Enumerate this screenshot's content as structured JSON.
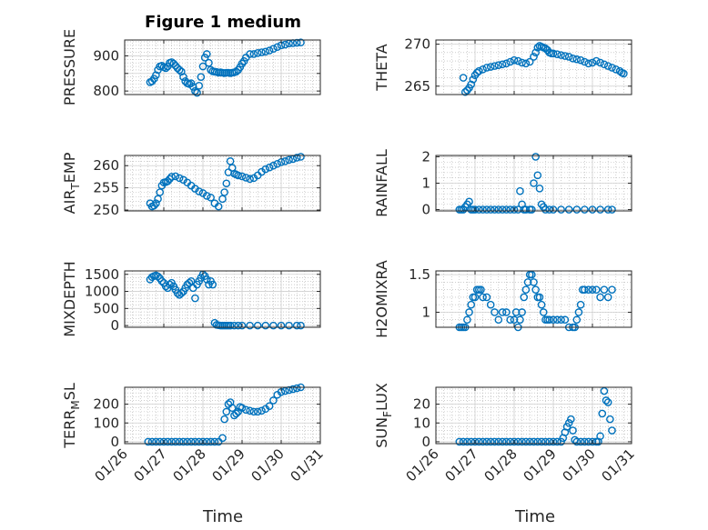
{
  "figure": {
    "title": "Figure 1 medium",
    "xlabel_left": "Time",
    "xlabel_right": "Time",
    "x_tick_labels": [
      "01/26",
      "01/27",
      "01/28",
      "01/29",
      "01/30",
      "01/31"
    ]
  },
  "colors": {
    "marker": "#0072BD",
    "axes": "#262626",
    "grid": "#b0b0b0",
    "background": "#ffffff"
  },
  "chart_data": [
    {
      "type": "scatter",
      "ylabel": "PRESSURE",
      "ylabel_sub": "",
      "ylabel_after": "",
      "xlim": [
        "01/26",
        "01/31"
      ],
      "ylim": [
        790,
        945
      ],
      "yticks": [
        800,
        850,
        900
      ],
      "ytick_labels": [
        "800",
        "",
        "900"
      ],
      "x": [
        0.65,
        0.7,
        0.75,
        0.8,
        0.85,
        0.9,
        0.95,
        1.0,
        1.05,
        1.1,
        1.15,
        1.2,
        1.25,
        1.3,
        1.35,
        1.4,
        1.45,
        1.5,
        1.55,
        1.6,
        1.65,
        1.7,
        1.75,
        1.8,
        1.85,
        1.9,
        1.95,
        2.0,
        2.05,
        2.1,
        2.15,
        2.2,
        2.25,
        2.3,
        2.35,
        2.4,
        2.45,
        2.5,
        2.55,
        2.6,
        2.65,
        2.7,
        2.75,
        2.8,
        2.85,
        2.9,
        2.95,
        3.0,
        3.05,
        3.1,
        3.2,
        3.3,
        3.4,
        3.5,
        3.6,
        3.7,
        3.8,
        3.9,
        4.0,
        4.1,
        4.2,
        4.3,
        4.4,
        4.5
      ],
      "y": [
        825,
        828,
        835,
        845,
        860,
        870,
        872,
        868,
        865,
        870,
        880,
        882,
        878,
        872,
        865,
        860,
        855,
        840,
        828,
        822,
        820,
        822,
        812,
        800,
        795,
        815,
        840,
        870,
        895,
        905,
        880,
        860,
        856,
        855,
        854,
        852,
        853,
        852,
        851,
        852,
        852,
        851,
        852,
        853,
        855,
        860,
        868,
        878,
        885,
        895,
        905,
        905,
        908,
        910,
        912,
        915,
        920,
        925,
        930,
        932,
        935,
        936,
        937,
        938
      ]
    },
    {
      "type": "scatter",
      "ylabel": "THETA",
      "ylabel_sub": "",
      "ylabel_after": "",
      "xlim": [
        "01/26",
        "01/31"
      ],
      "ylim": [
        264,
        270.5
      ],
      "yticks": [
        265,
        270
      ],
      "ytick_labels": [
        "265",
        "270"
      ],
      "x": [
        0.7,
        0.75,
        0.8,
        0.85,
        0.9,
        0.95,
        1.0,
        1.05,
        1.1,
        1.2,
        1.3,
        1.4,
        1.5,
        1.6,
        1.7,
        1.8,
        1.9,
        2.0,
        2.1,
        2.2,
        2.3,
        2.4,
        2.5,
        2.55,
        2.6,
        2.65,
        2.7,
        2.75,
        2.8,
        2.85,
        2.9,
        2.95,
        3.0,
        3.1,
        3.2,
        3.3,
        3.4,
        3.5,
        3.6,
        3.7,
        3.8,
        3.9,
        4.0,
        4.1,
        4.2,
        4.3,
        4.4,
        4.5,
        4.6,
        4.7,
        4.75,
        4.8
      ],
      "y": [
        266,
        264.3,
        264.5,
        264.8,
        265.2,
        265.8,
        266.3,
        266.6,
        266.8,
        267.0,
        267.2,
        267.3,
        267.4,
        267.5,
        267.6,
        267.7,
        267.9,
        268.1,
        268.0,
        267.8,
        267.7,
        267.9,
        268.5,
        269.0,
        269.6,
        269.8,
        269.7,
        269.6,
        269.5,
        269.3,
        269.0,
        268.9,
        268.9,
        268.8,
        268.7,
        268.6,
        268.5,
        268.3,
        268.2,
        268.1,
        267.9,
        267.7,
        267.8,
        268.0,
        267.8,
        267.6,
        267.4,
        267.2,
        267.0,
        266.8,
        266.6,
        266.5
      ]
    },
    {
      "type": "scatter",
      "ylabel": "AIR",
      "ylabel_sub": "T",
      "ylabel_after": "EMP",
      "xlim": [
        "01/26",
        "01/31"
      ],
      "ylim": [
        249.8,
        262.3
      ],
      "yticks": [
        250,
        255,
        260
      ],
      "ytick_labels": [
        "250",
        "255",
        "260"
      ],
      "x": [
        0.65,
        0.7,
        0.75,
        0.8,
        0.85,
        0.9,
        0.95,
        1.0,
        1.05,
        1.1,
        1.15,
        1.2,
        1.3,
        1.4,
        1.5,
        1.6,
        1.7,
        1.8,
        1.9,
        2.0,
        2.1,
        2.2,
        2.3,
        2.4,
        2.5,
        2.55,
        2.6,
        2.65,
        2.7,
        2.75,
        2.8,
        2.85,
        2.9,
        3.0,
        3.1,
        3.2,
        3.3,
        3.4,
        3.5,
        3.6,
        3.7,
        3.8,
        3.9,
        4.0,
        4.1,
        4.2,
        4.3,
        4.4,
        4.5
      ],
      "y": [
        251.5,
        250.8,
        251,
        251.5,
        252.5,
        254,
        255.5,
        256.2,
        256.3,
        256.5,
        257,
        257.5,
        257.6,
        257.2,
        256.8,
        256.2,
        255.5,
        254.8,
        254.2,
        253.8,
        253.2,
        252.8,
        251.5,
        250.8,
        252.5,
        254,
        256,
        258.5,
        261,
        259.5,
        258.2,
        258,
        257.8,
        257.6,
        257.3,
        257.0,
        257.2,
        257.8,
        258.6,
        259.2,
        259.6,
        260.0,
        260.4,
        260.8,
        261.0,
        261.3,
        261.5,
        261.8,
        262.0
      ]
    },
    {
      "type": "scatter",
      "ylabel": "RAINFALL",
      "ylabel_sub": "",
      "ylabel_after": "",
      "xlim": [
        "01/26",
        "01/31"
      ],
      "ylim": [
        -0.05,
        2.05
      ],
      "yticks": [
        0,
        1,
        2
      ],
      "ytick_labels": [
        "0",
        "1",
        "2"
      ],
      "x": [
        0.6,
        0.65,
        0.7,
        0.75,
        0.8,
        0.85,
        0.9,
        0.95,
        1.0,
        1.1,
        1.2,
        1.3,
        1.4,
        1.5,
        1.6,
        1.7,
        1.8,
        1.9,
        2.0,
        2.1,
        2.15,
        2.2,
        2.25,
        2.3,
        2.4,
        2.45,
        2.5,
        2.55,
        2.6,
        2.65,
        2.7,
        2.75,
        2.8,
        2.9,
        3.0,
        3.2,
        3.4,
        3.6,
        3.8,
        4.0,
        4.2,
        4.4,
        4.5
      ],
      "y": [
        0,
        0,
        0,
        0.1,
        0.2,
        0.3,
        0,
        0,
        0,
        0,
        0,
        0,
        0,
        0,
        0,
        0,
        0,
        0,
        0,
        0,
        0.7,
        0.2,
        0,
        0,
        0,
        0,
        1.0,
        2.0,
        1.3,
        0.8,
        0.2,
        0.1,
        0,
        0,
        0,
        0,
        0,
        0,
        0,
        0,
        0,
        0,
        0
      ]
    },
    {
      "type": "scatter",
      "ylabel": "MIXDEPTH",
      "ylabel_sub": "",
      "ylabel_after": "",
      "xlim": [
        "01/26",
        "01/31"
      ],
      "ylim": [
        -50,
        1600
      ],
      "yticks": [
        0,
        500,
        1000,
        1500
      ],
      "ytick_labels": [
        "0",
        "500",
        "1000",
        "1500"
      ],
      "x": [
        0.65,
        0.7,
        0.75,
        0.8,
        0.85,
        0.9,
        0.95,
        1.0,
        1.05,
        1.1,
        1.15,
        1.2,
        1.25,
        1.3,
        1.35,
        1.4,
        1.45,
        1.5,
        1.55,
        1.6,
        1.65,
        1.7,
        1.75,
        1.8,
        1.85,
        1.9,
        1.95,
        2.0,
        2.05,
        2.1,
        2.15,
        2.2,
        2.25,
        2.3,
        2.35,
        2.4,
        2.45,
        2.5,
        2.55,
        2.6,
        2.65,
        2.7,
        2.8,
        2.9,
        3.0,
        3.2,
        3.4,
        3.6,
        3.8,
        4.0,
        4.2,
        4.4,
        4.5
      ],
      "y": [
        1350,
        1420,
        1450,
        1470,
        1440,
        1380,
        1300,
        1250,
        1150,
        1100,
        1200,
        1250,
        1150,
        1050,
        950,
        900,
        950,
        1000,
        1100,
        1200,
        1250,
        1300,
        1100,
        800,
        1200,
        1300,
        1400,
        1500,
        1450,
        1350,
        1200,
        1300,
        1200,
        80,
        20,
        10,
        0,
        0,
        0,
        0,
        0,
        0,
        0,
        0,
        0,
        0,
        0,
        0,
        0,
        0,
        0,
        0,
        0
      ]
    },
    {
      "type": "scatter",
      "ylabel": "H2OMIXRA",
      "ylabel_sub": "",
      "ylabel_after": "",
      "xlim": [
        "01/26",
        "01/31"
      ],
      "ylim": [
        0.8,
        1.55
      ],
      "yticks": [
        1,
        1.5
      ],
      "ytick_labels": [
        "1",
        "1.5"
      ],
      "x": [
        0.6,
        0.65,
        0.7,
        0.75,
        0.8,
        0.85,
        0.9,
        0.95,
        1.0,
        1.05,
        1.1,
        1.15,
        1.2,
        1.3,
        1.4,
        1.5,
        1.6,
        1.7,
        1.8,
        1.9,
        2.0,
        2.05,
        2.1,
        2.15,
        2.2,
        2.25,
        2.3,
        2.35,
        2.4,
        2.45,
        2.5,
        2.55,
        2.6,
        2.65,
        2.7,
        2.75,
        2.8,
        2.85,
        2.9,
        3.0,
        3.1,
        3.2,
        3.3,
        3.4,
        3.5,
        3.55,
        3.6,
        3.65,
        3.7,
        3.75,
        3.8,
        3.9,
        4.0,
        4.1,
        4.2,
        4.3,
        4.4,
        4.5
      ],
      "y": [
        0.8,
        0.8,
        0.8,
        0.8,
        0.9,
        1.0,
        1.1,
        1.2,
        1.2,
        1.3,
        1.3,
        1.3,
        1.2,
        1.2,
        1.1,
        1.0,
        0.9,
        1.0,
        1.0,
        0.9,
        0.9,
        1.0,
        0.8,
        0.9,
        1.0,
        1.2,
        1.3,
        1.4,
        1.5,
        1.5,
        1.4,
        1.3,
        1.2,
        1.2,
        1.1,
        1.0,
        0.9,
        0.9,
        0.9,
        0.9,
        0.9,
        0.9,
        0.9,
        0.8,
        0.8,
        0.8,
        0.9,
        1.0,
        1.1,
        1.3,
        1.3,
        1.3,
        1.3,
        1.3,
        1.2,
        1.3,
        1.2,
        1.3
      ]
    },
    {
      "type": "scatter",
      "ylabel": "TERR",
      "ylabel_sub": "M",
      "ylabel_after": "SL",
      "xlim": [
        "01/26",
        "01/31"
      ],
      "ylim": [
        -10,
        290
      ],
      "yticks": [
        0,
        100,
        200
      ],
      "ytick_labels": [
        "0",
        "100",
        "200"
      ],
      "x": [
        0.6,
        0.7,
        0.8,
        0.9,
        1.0,
        1.1,
        1.2,
        1.3,
        1.4,
        1.5,
        1.6,
        1.7,
        1.8,
        1.9,
        2.0,
        2.1,
        2.2,
        2.3,
        2.4,
        2.5,
        2.55,
        2.6,
        2.65,
        2.7,
        2.75,
        2.8,
        2.85,
        2.9,
        2.95,
        3.0,
        3.1,
        3.2,
        3.3,
        3.4,
        3.5,
        3.6,
        3.7,
        3.8,
        3.9,
        4.0,
        4.1,
        4.2,
        4.3,
        4.4,
        4.5
      ],
      "y": [
        0,
        0,
        0,
        0,
        0,
        0,
        0,
        0,
        0,
        0,
        0,
        0,
        0,
        0,
        0,
        0,
        0,
        0,
        0,
        20,
        120,
        160,
        200,
        210,
        180,
        140,
        150,
        160,
        185,
        180,
        170,
        165,
        160,
        160,
        165,
        175,
        190,
        220,
        250,
        265,
        270,
        275,
        280,
        285,
        290
      ]
    },
    {
      "type": "scatter",
      "ylabel": "SUN",
      "ylabel_sub": "F",
      "ylabel_after": "LUX",
      "xlim": [
        "01/26",
        "01/31"
      ],
      "ylim": [
        -1,
        29
      ],
      "yticks": [
        0,
        10,
        20
      ],
      "ytick_labels": [
        "0",
        "10",
        "20"
      ],
      "x": [
        0.6,
        0.7,
        0.8,
        0.9,
        1.0,
        1.1,
        1.2,
        1.3,
        1.4,
        1.5,
        1.6,
        1.7,
        1.8,
        1.9,
        2.0,
        2.1,
        2.2,
        2.3,
        2.4,
        2.5,
        2.6,
        2.7,
        2.8,
        2.9,
        3.0,
        3.1,
        3.2,
        3.25,
        3.3,
        3.35,
        3.4,
        3.45,
        3.5,
        3.55,
        3.6,
        3.7,
        3.8,
        3.9,
        4.0,
        4.1,
        4.15,
        4.2,
        4.25,
        4.3,
        4.35,
        4.4,
        4.45,
        4.5
      ],
      "y": [
        0,
        0,
        0,
        0,
        0,
        0,
        0,
        0,
        0,
        0,
        0,
        0,
        0,
        0,
        0,
        0,
        0,
        0,
        0,
        0,
        0,
        0,
        0,
        0,
        0,
        0,
        0,
        2,
        5,
        8,
        10,
        12,
        6,
        1,
        0,
        0,
        0,
        0,
        0,
        0,
        0,
        3,
        15,
        27,
        22,
        21,
        12,
        6
      ]
    }
  ]
}
